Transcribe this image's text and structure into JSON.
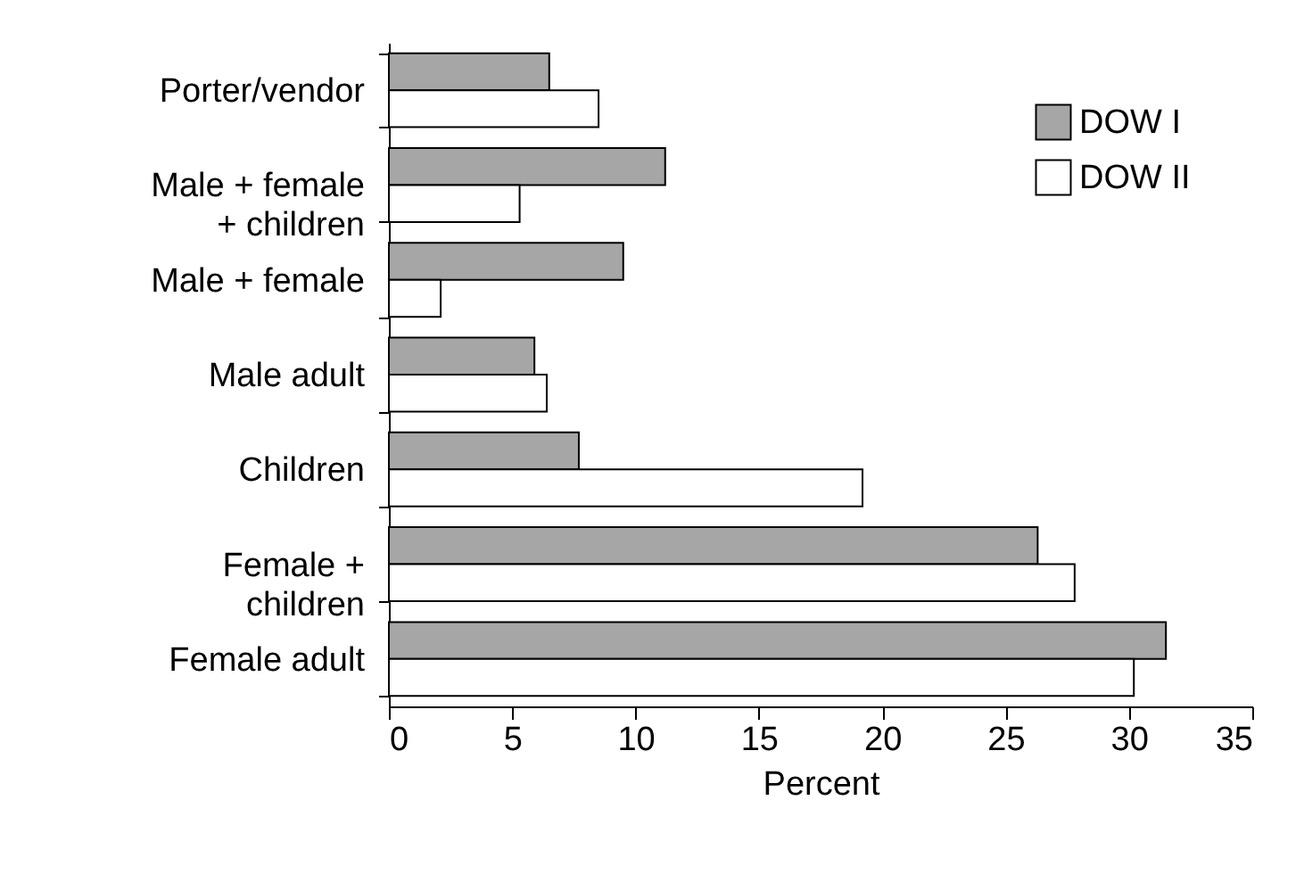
{
  "chart_data": {
    "type": "bar",
    "orientation": "horizontal",
    "xlabel": "Percent",
    "categories": [
      "Porter/vendor",
      "Male + female\n+ children",
      "Male + female",
      "Male adult",
      "Children",
      "Female +\nchildren",
      "Female adult"
    ],
    "series": [
      {
        "name": "DOW I",
        "color": "#a6a6a6",
        "values": [
          6.5,
          11.2,
          9.5,
          5.9,
          7.7,
          26.3,
          31.5
        ]
      },
      {
        "name": "DOW II",
        "color": "#ffffff",
        "values": [
          8.5,
          5.3,
          2.1,
          6.4,
          19.2,
          27.8,
          30.2
        ]
      }
    ],
    "xlim": [
      0,
      35
    ],
    "xticks": [
      0,
      5,
      10,
      15,
      20,
      25,
      30,
      35
    ],
    "grid": false,
    "legend": "top right"
  }
}
